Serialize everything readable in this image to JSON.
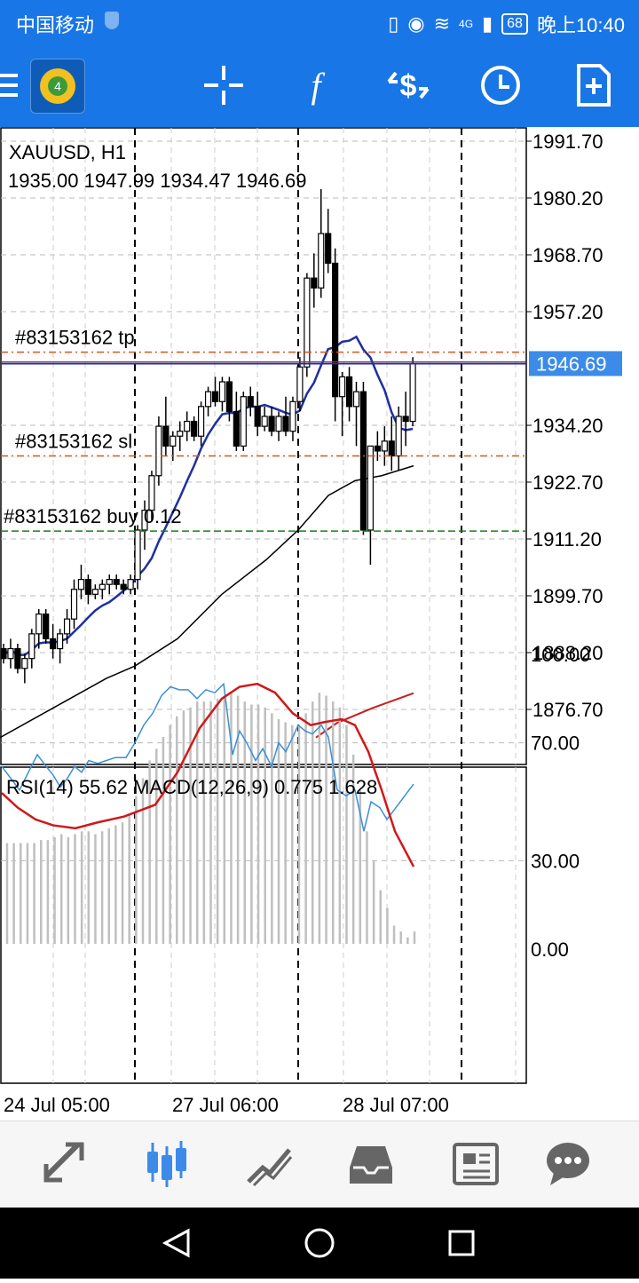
{
  "status_bar": {
    "carrier": "中国移动",
    "network": "4G",
    "battery": "68",
    "time": "晚上10:40"
  },
  "toolbar": {
    "items": [
      "menu-icon",
      "metatrader-logo",
      "crosshair-icon",
      "function-icon",
      "trade-icon",
      "clock-icon",
      "new-document-icon"
    ],
    "accent_color": "#1976e6"
  },
  "chart": {
    "symbol_timeframe": "XAUUSD, H1",
    "ohlc": "1935.00 1947.99 1934.47 1946.69",
    "current_price": "1946.69",
    "price_ticks": [
      "1991.70",
      "1980.20",
      "1968.70",
      "1957.20",
      "1934.20",
      "1922.70",
      "1911.20",
      "1899.70",
      "1888.20",
      "1876.70"
    ],
    "lines": [
      {
        "label": "#83153162 tp",
        "price": 1949.0,
        "color": "#d9541e"
      },
      {
        "label": "#83153162 sl",
        "price": 1928.0,
        "color": "#d9541e"
      },
      {
        "label": "#83153162 buy 0.12",
        "price": 1912.8,
        "color": "#1a7f1a"
      }
    ],
    "indicator_label": "RSI(14) 55.62 MACD(12,26,9) 0.775 1.628",
    "indicator_ticks": [
      "100.00",
      "70.00",
      "30.00",
      "0.00"
    ],
    "date_labels": [
      "24 Jul 05:00",
      "27 Jul 06:00",
      "28 Jul 07:00"
    ],
    "colors": {
      "ma_fast": "#1f2fa0",
      "ma_slow": "#000000",
      "ma_red": "#c81e1e",
      "rsi": "#3a8fd6",
      "macd_signal": "#d01818",
      "price_tag": "#3d8be8"
    }
  },
  "bottom_nav": {
    "items": [
      "quotes-icon",
      "chart-icon",
      "trade-icon",
      "history-icon",
      "news-icon",
      "messages-icon"
    ],
    "active": "chart-icon"
  },
  "system_nav": [
    "back-icon",
    "home-icon",
    "recents-icon"
  ]
}
